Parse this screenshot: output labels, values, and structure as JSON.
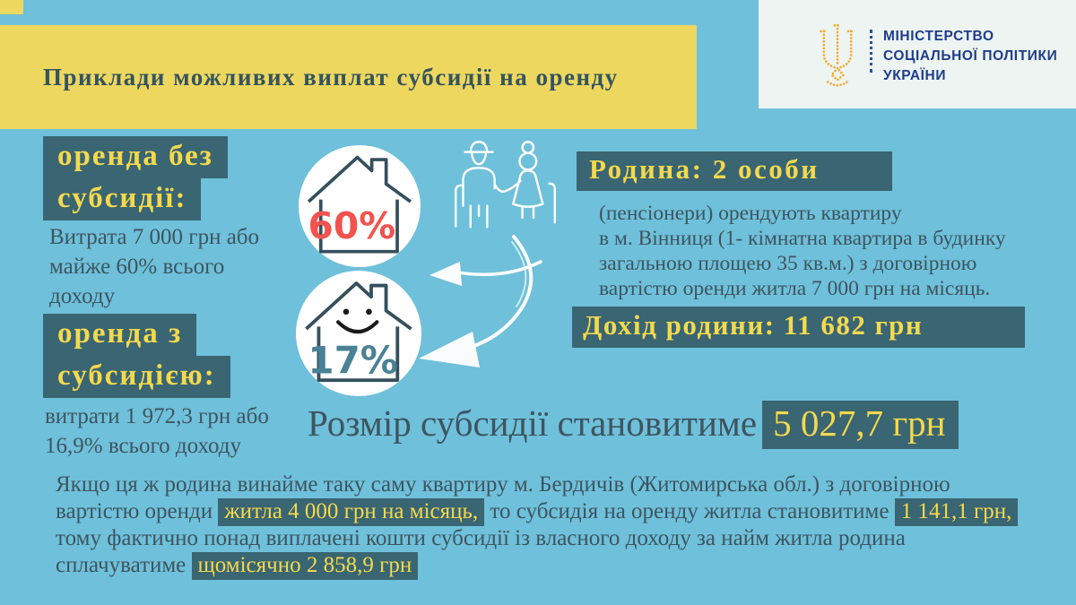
{
  "colors": {
    "background": "#6FC0DA",
    "banner_yellow": "#EDD75F",
    "box_dark_teal": "#3A6572",
    "accent_yellow_text": "#F4D94D",
    "body_text": "#3D5560",
    "ministry_blue": "#1E3C8C",
    "trident_gold": "#F1AD39",
    "percent_red": "#F2534E",
    "percent_teal": "#4B8195",
    "white": "#FFFFFF"
  },
  "header": {
    "title": "Приклади можливих виплат субсидії на оренду"
  },
  "ministry": {
    "name": "МІНІСТЕРСТВО\nСОЦІАЛЬНОЇ ПОЛІТИКИ\nУКРАЇНИ"
  },
  "left": {
    "no_subsidy_heading_line1": "оренда без",
    "no_subsidy_heading_line2": "субсидії:",
    "no_subsidy_text": "Витрата 7 000 грн або\nмайже 60% всього\nдоходу",
    "with_subsidy_heading_line1": "оренда з",
    "with_subsidy_heading_line2": "субсидією:",
    "with_subsidy_text": "витрати 1 972,3 грн або\n16,9% всього доходу"
  },
  "graphics": {
    "house_without_subsidy_pct": "60%",
    "house_with_subsidy_pct": "17%"
  },
  "family": {
    "heading": "Родина: 2 особи",
    "description": "(пенсіонери) орендують квартиру\nв м. Вінниця (1- кімнатна квартира в будинку\nзагальною площею 35 кв.м.) з договірною\nвартістю оренди житла 7 000 грн на місяць.",
    "income": "Дохід родини: 11 682 грн"
  },
  "subsidy": {
    "label": "Розмір субсидії становитиме",
    "amount": "5 027,7 грн"
  },
  "bottom_paragraph": {
    "runs": [
      {
        "text": "Якщо ця ж родина винайме таку саму квартиру м. Бердичів (Житомирська обл.) з договірною вартістю оренди ",
        "highlight": false
      },
      {
        "text": "житла 4 000 грн на місяць,",
        "highlight": true
      },
      {
        "text": " то субсидія на оренду житла становитиме ",
        "highlight": false
      },
      {
        "text": "1 141,1 грн,",
        "highlight": true
      },
      {
        "text": " тому фактично понад виплачені кошти субсидії із власного доходу за найм житла родина сплачуватиме ",
        "highlight": false
      },
      {
        "text": "щомісячно 2 858,9 грн",
        "highlight": true
      }
    ]
  }
}
